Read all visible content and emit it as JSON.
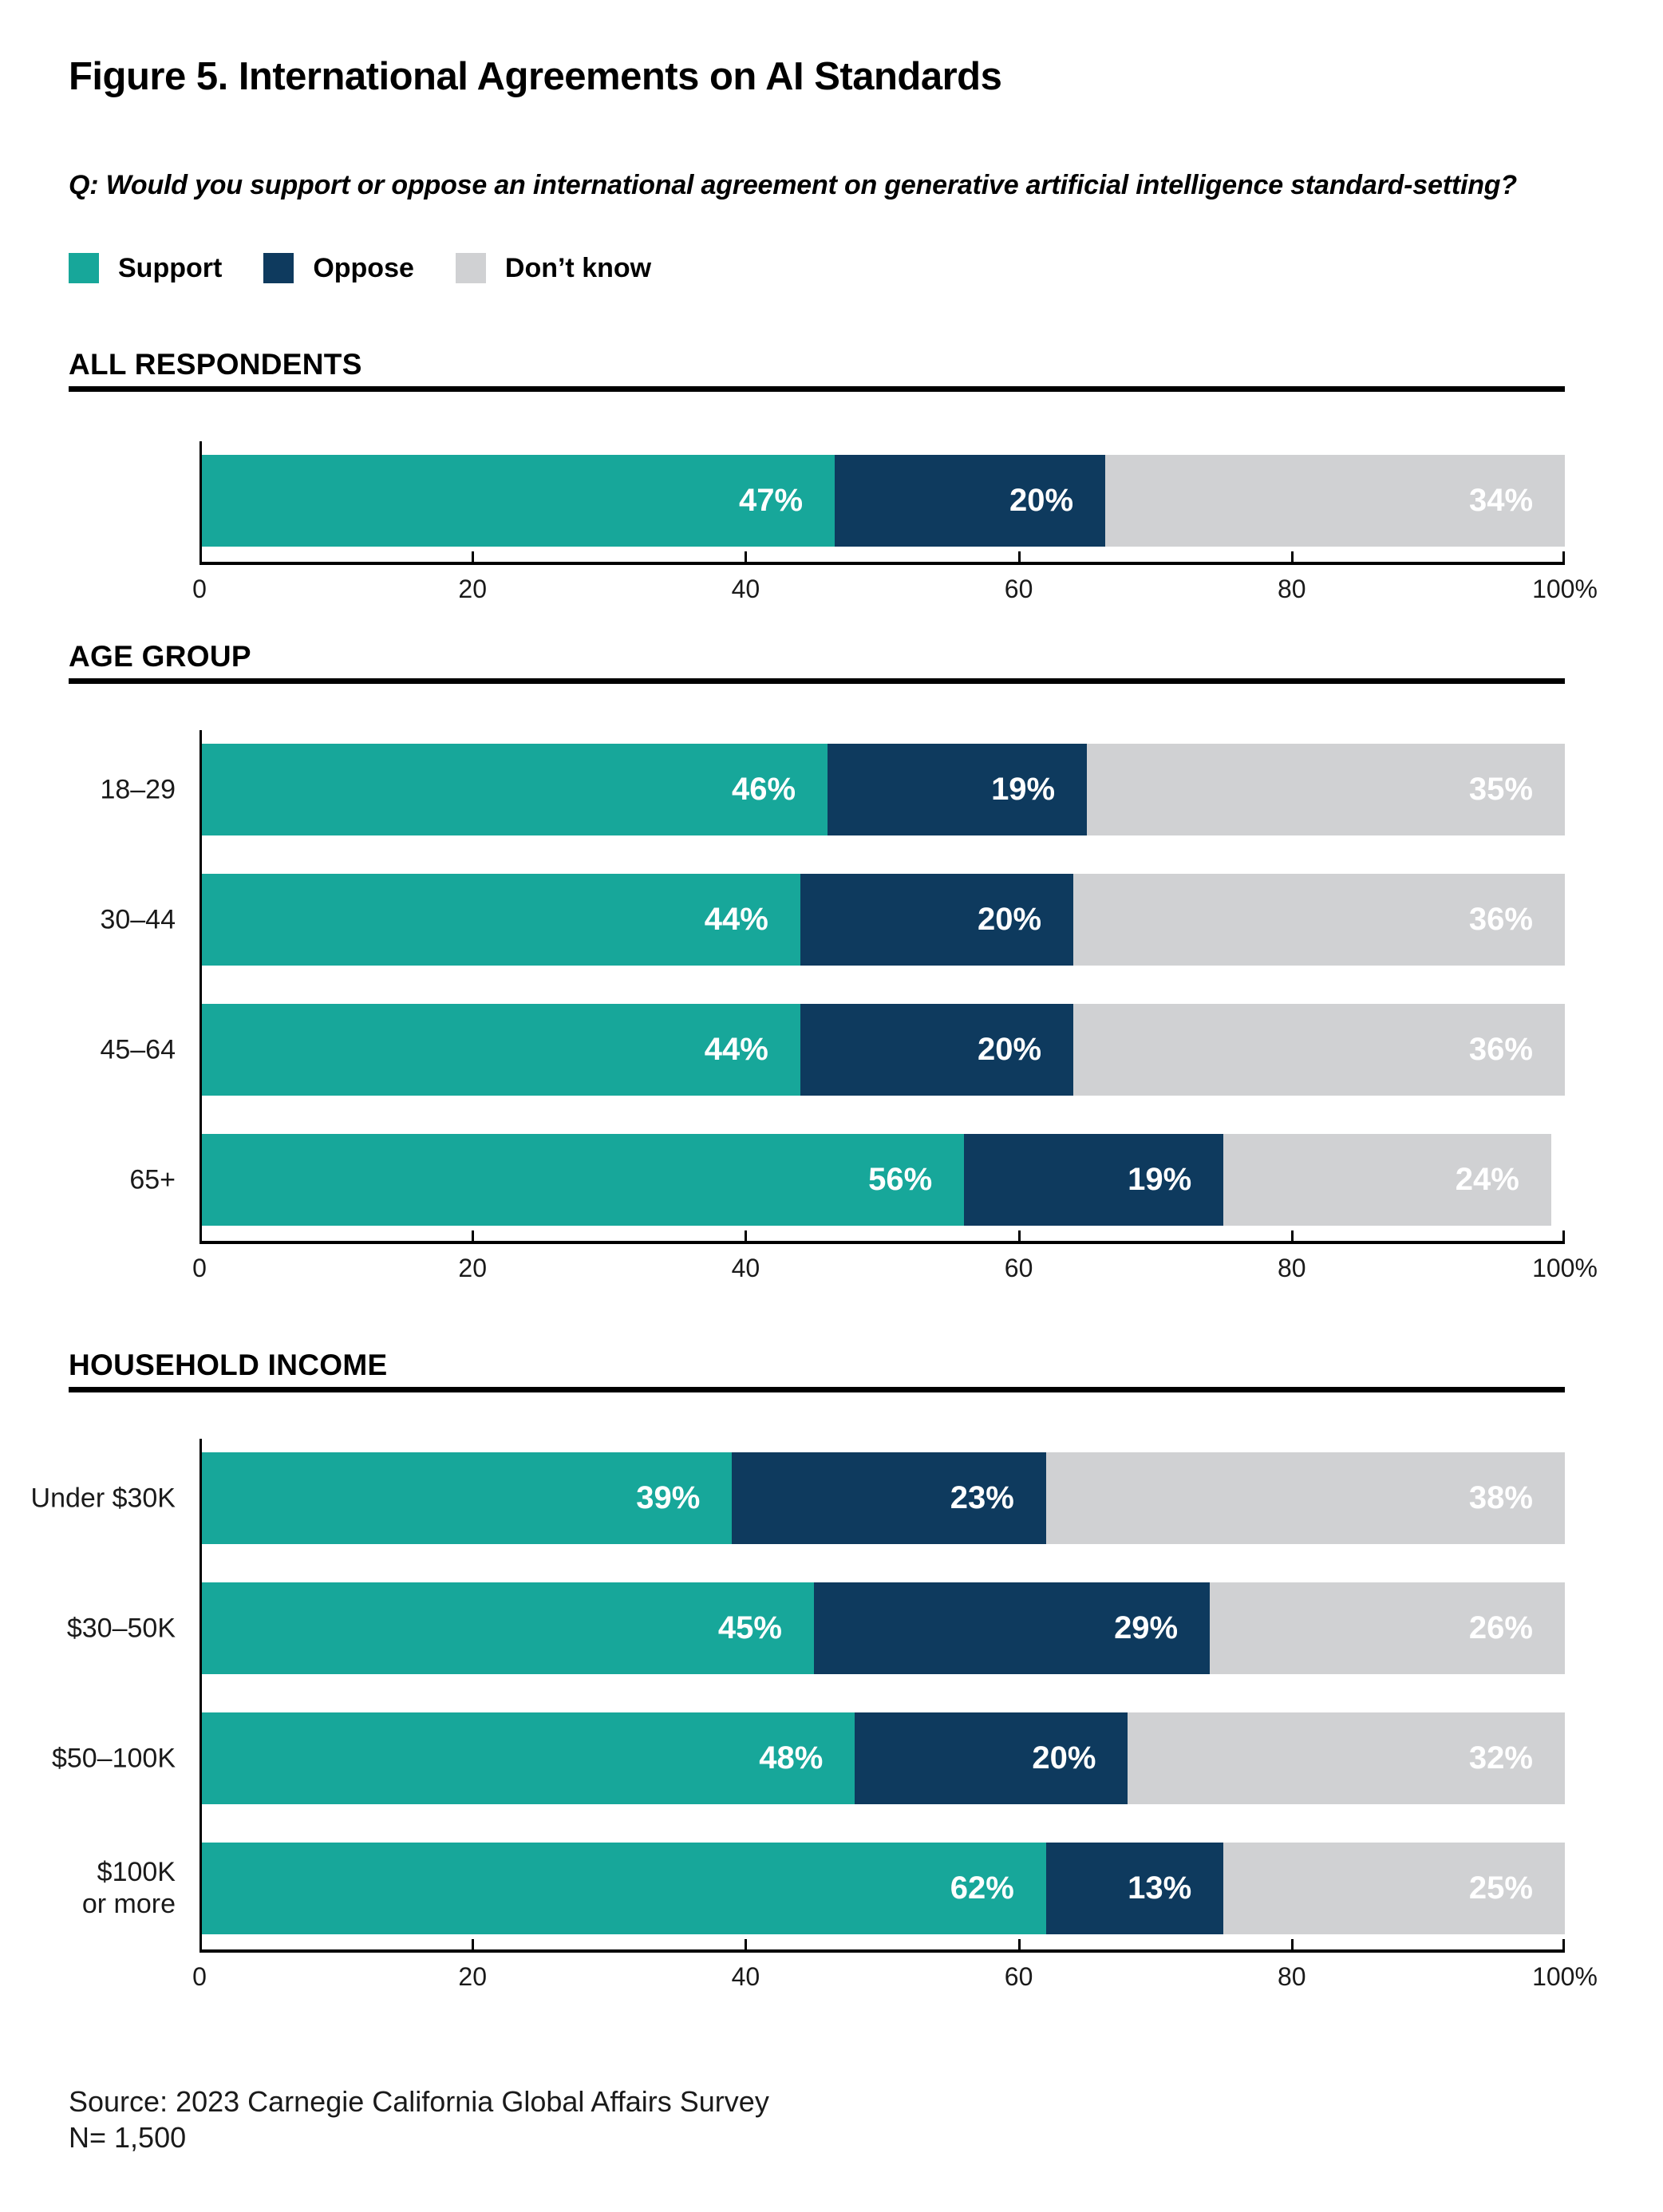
{
  "chart_data": {
    "type": "bar",
    "orientation": "horizontal",
    "stacked": true,
    "title": "Figure 5. International Agreements on AI Standards",
    "subtitle": "Q: Would you support or oppose an international agreement on generative artificial intelligence standard-setting?",
    "legend_position": "top",
    "series_names": [
      "Support",
      "Oppose",
      "Don’t know"
    ],
    "series_colors": [
      "#17A79A",
      "#0E3A5E",
      "#D0D1D3"
    ],
    "x_axis": {
      "min": 0,
      "max": 100,
      "ticks": [
        0,
        20,
        40,
        60,
        80,
        100
      ],
      "tick_labels": [
        "0",
        "20",
        "40",
        "60",
        "80",
        "100%"
      ]
    },
    "groups": [
      {
        "heading": "ALL RESPONDENTS",
        "categories": [
          "All respondents"
        ],
        "series": [
          {
            "name": "Support",
            "values": [
              47
            ]
          },
          {
            "name": "Oppose",
            "values": [
              20
            ]
          },
          {
            "name": "Don’t know",
            "values": [
              34
            ]
          }
        ]
      },
      {
        "heading": "AGE GROUP",
        "categories": [
          "18–29",
          "30–44",
          "45–64",
          "65+"
        ],
        "series": [
          {
            "name": "Support",
            "values": [
              46,
              44,
              44,
              56
            ]
          },
          {
            "name": "Oppose",
            "values": [
              19,
              20,
              20,
              19
            ]
          },
          {
            "name": "Don’t know",
            "values": [
              35,
              36,
              36,
              24
            ]
          }
        ]
      },
      {
        "heading": "HOUSEHOLD INCOME",
        "categories": [
          "Under $30K",
          "$30–50K",
          "$50–100K",
          "$100K or more"
        ],
        "series": [
          {
            "name": "Support",
            "values": [
              39,
              45,
              48,
              62
            ]
          },
          {
            "name": "Oppose",
            "values": [
              23,
              29,
              20,
              13
            ]
          },
          {
            "name": "Don’t know",
            "values": [
              38,
              26,
              32,
              25
            ]
          }
        ]
      }
    ],
    "source": "Source: 2023 Carnegie California Global Affairs Survey",
    "n": "N= 1,500"
  },
  "ui": {
    "title": "Figure 5. International Agreements on AI Standards",
    "question": "Q: Would you support or oppose an international agreement on generative artificial intelligence standard-setting?",
    "legend": [
      {
        "key": "support",
        "label": "Support",
        "color": "#17A79A"
      },
      {
        "key": "oppose",
        "label": "Oppose",
        "color": "#0E3A5E"
      },
      {
        "key": "dont-know",
        "label": "Don’t know",
        "color": "#D0D1D3"
      }
    ],
    "axis": {
      "tick_positions": [
        0,
        20,
        40,
        60,
        80,
        100
      ],
      "tick_labels": [
        "0",
        "20",
        "40",
        "60",
        "80",
        "100%"
      ]
    },
    "sections": [
      {
        "id": "all-respondents",
        "heading": "ALL RESPONDENTS",
        "rows": [
          {
            "label_lines": [],
            "values": [
              47,
              20,
              34
            ],
            "value_labels": [
              "47%",
              "20%",
              "34%"
            ]
          }
        ]
      },
      {
        "id": "age-group",
        "heading": "AGE GROUP",
        "rows": [
          {
            "label_lines": [
              "18–29"
            ],
            "values": [
              46,
              19,
              35
            ],
            "value_labels": [
              "46%",
              "19%",
              "35%"
            ]
          },
          {
            "label_lines": [
              "30–44"
            ],
            "values": [
              44,
              20,
              36
            ],
            "value_labels": [
              "44%",
              "20%",
              "36%"
            ]
          },
          {
            "label_lines": [
              "45–64"
            ],
            "values": [
              44,
              20,
              36
            ],
            "value_labels": [
              "44%",
              "20%",
              "36%"
            ]
          },
          {
            "label_lines": [
              "65+"
            ],
            "values": [
              56,
              19,
              24
            ],
            "value_labels": [
              "56%",
              "19%",
              "24%"
            ]
          }
        ]
      },
      {
        "id": "household-income",
        "heading": "HOUSEHOLD INCOME",
        "rows": [
          {
            "label_lines": [
              "Under $30K"
            ],
            "values": [
              39,
              23,
              38
            ],
            "value_labels": [
              "39%",
              "23%",
              "38%"
            ]
          },
          {
            "label_lines": [
              "$30–50K"
            ],
            "values": [
              45,
              29,
              26
            ],
            "value_labels": [
              "45%",
              "29%",
              "26%"
            ]
          },
          {
            "label_lines": [
              "$50–100K"
            ],
            "values": [
              48,
              20,
              32
            ],
            "value_labels": [
              "48%",
              "20%",
              "32%"
            ]
          },
          {
            "label_lines": [
              "$100K",
              "or more"
            ],
            "values": [
              62,
              13,
              25
            ],
            "value_labels": [
              "62%",
              "13%",
              "25%"
            ]
          }
        ]
      }
    ],
    "source_line1": "Source: 2023 Carnegie California Global Affairs Survey",
    "source_line2": "N= 1,500"
  }
}
